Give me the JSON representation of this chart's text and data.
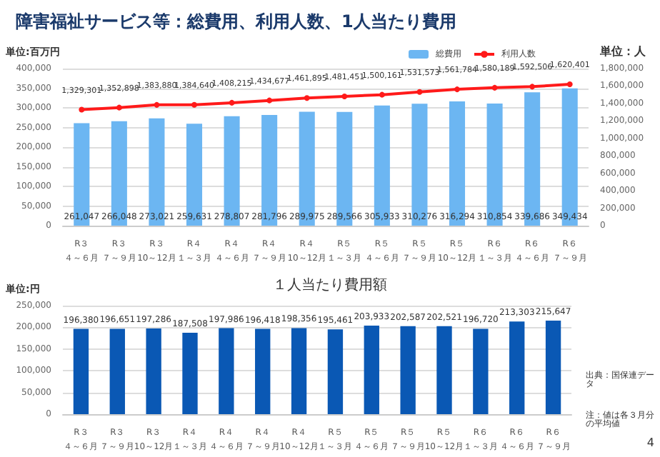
{
  "chart_data": [
    {
      "type": "bar",
      "title": "障害福祉サービス等：総費用、利用人数、1人当たり費用",
      "ylabel": "単位:百万円",
      "y2label": "単位：人",
      "categories": [
        "R３４～６月",
        "R３７～９月",
        "R３10～12月",
        "R４１～３月",
        "R４４～６月",
        "R４７～９月",
        "R４10～12月",
        "R５１～３月",
        "R５４～６月",
        "R５７～９月",
        "R５10～12月",
        "R６１～３月",
        "R６４～６月",
        "R６７～９月"
      ],
      "series": [
        {
          "name": "総費用",
          "color": "#6cb6f2",
          "values": [
            261047,
            266048,
            273021,
            259631,
            278807,
            281796,
            289975,
            289566,
            305933,
            310276,
            316294,
            310854,
            339686,
            349434
          ],
          "value_labels": [
            "261,047",
            "266,048",
            "273,021",
            "259,631",
            "278,807",
            "281,796",
            "289,975",
            "289,566",
            "305,933",
            "310,276",
            "316,294",
            "310,854",
            "339,686",
            "349,434"
          ]
        },
        {
          "name": "利用人数",
          "type": "line",
          "axis": "y2",
          "color": "#ff1a1a",
          "values": [
            1329301,
            1352898,
            1383880,
            1384640,
            1408215,
            1434677,
            1461895,
            1481451,
            1500161,
            1531573,
            1561784,
            1580189,
            1592506,
            1620401
          ],
          "value_labels": [
            "1,329,301",
            "1,352,898",
            "1,383,880",
            "1,384,640",
            "1,408,215",
            "1,434,677",
            "1,461,895",
            "1,481,451",
            "1,500,161",
            "1,531,573",
            "1,561,784",
            "1,580,189",
            "1,592,506",
            "1,620,401"
          ]
        }
      ],
      "ylim": [
        0,
        400000
      ],
      "yticks": [
        0,
        {
          "value": 50000,
          "label": "50,000"
        },
        {
          "value": 100000,
          "label": "100,000"
        },
        {
          "value": 150000,
          "label": "150,000"
        },
        {
          "value": 200000,
          "label": "200,000"
        },
        {
          "value": 250000,
          "label": "250,000"
        },
        {
          "value": 300000,
          "label": "300,000"
        },
        {
          "value": 350000,
          "label": "350,000"
        },
        {
          "value": 400000,
          "label": "400,000"
        }
      ],
      "y2lim": [
        0,
        1800000
      ],
      "y2ticks": [
        0,
        {
          "value": 200000,
          "label": "200,000"
        },
        {
          "value": 400000,
          "label": "400,000"
        },
        {
          "value": 600000,
          "label": "600,000"
        },
        {
          "value": 800000,
          "label": "800,000"
        },
        {
          "value": 1000000,
          "label": "1,000,000"
        },
        {
          "value": 1200000,
          "label": "1,200,000"
        },
        {
          "value": 1400000,
          "label": "1,400,000"
        },
        {
          "value": 1600000,
          "label": "1,600,000"
        },
        {
          "value": 1800000,
          "label": "1,800,000"
        }
      ],
      "legend": "top right",
      "grid": "y",
      "marker": "circle"
    },
    {
      "type": "bar",
      "title": "１人当たり費用額",
      "ylabel": "単位:円",
      "categories": [
        "R３４～６月",
        "R３７～９月",
        "R３10～12月",
        "R４１～３月",
        "R４４～６月",
        "R４７～９月",
        "R４10～12月",
        "R５１～３月",
        "R５４～６月",
        "R５７～９月",
        "R５10～12月",
        "R６１～３月",
        "R６４～６月",
        "R６７～９月"
      ],
      "values": [
        196380,
        196651,
        197286,
        187508,
        197986,
        196418,
        198356,
        195461,
        203933,
        202587,
        202521,
        196720,
        213303,
        215647
      ],
      "value_labels": [
        "196,380",
        "196,651",
        "197,286",
        "187,508",
        "197,986",
        "196,418",
        "198,356",
        "195,461",
        "203,933",
        "202,587",
        "202,521",
        "196,720",
        "213,303",
        "215,647"
      ],
      "color": "#0a58b4",
      "ylim": [
        0,
        250000
      ],
      "yticks": [
        0,
        {
          "value": 50000,
          "label": "50,000"
        },
        {
          "value": 100000,
          "label": "100,000"
        },
        {
          "value": 150000,
          "label": "150,000"
        },
        {
          "value": 200000,
          "label": "200,000"
        },
        {
          "value": 250000,
          "label": "250,000"
        }
      ],
      "grid": "y",
      "annotations": [
        "出典：国保連データ",
        "注：値は各３月分の平均値",
        "4"
      ]
    }
  ]
}
